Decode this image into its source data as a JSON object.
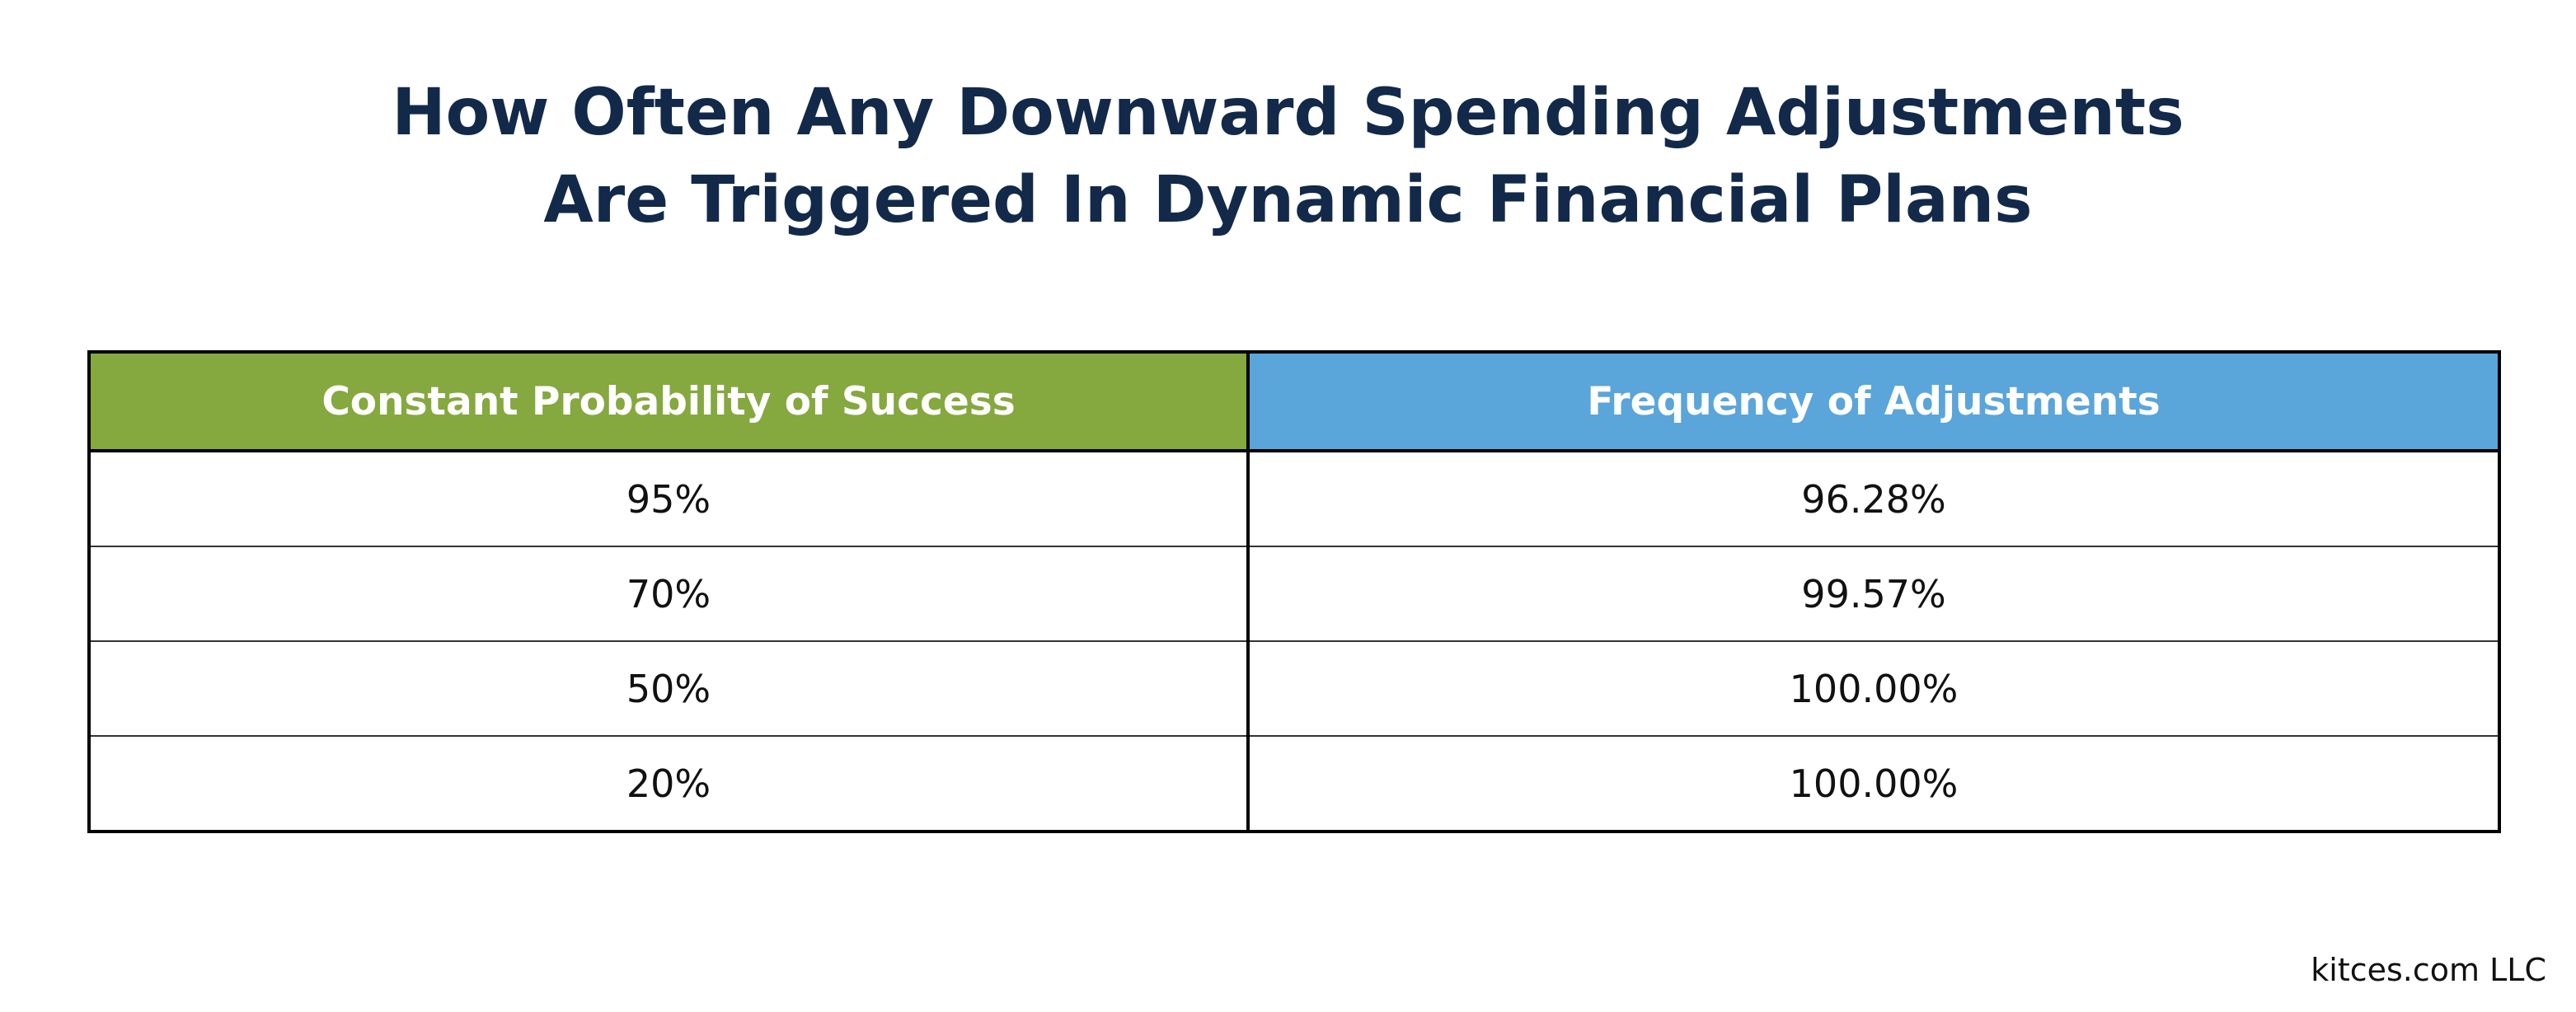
{
  "chart_data": {
    "type": "table",
    "title_lines": [
      "How Often Any Downward Spending Adjustments",
      "Are Triggered In Dynamic Financial Plans"
    ],
    "columns": [
      "Constant Probability of Success",
      "Frequency of Adjustments"
    ],
    "rows": [
      [
        "95%",
        "96.28%"
      ],
      [
        "70%",
        "99.57%"
      ],
      [
        "50%",
        "100.00%"
      ],
      [
        "20%",
        "100.00%"
      ]
    ]
  },
  "colors": {
    "title": "#12294a",
    "header_col1": "#85a83f",
    "header_col2": "#5aa5da"
  },
  "footer": {
    "credit": "kitces.com LLC"
  }
}
